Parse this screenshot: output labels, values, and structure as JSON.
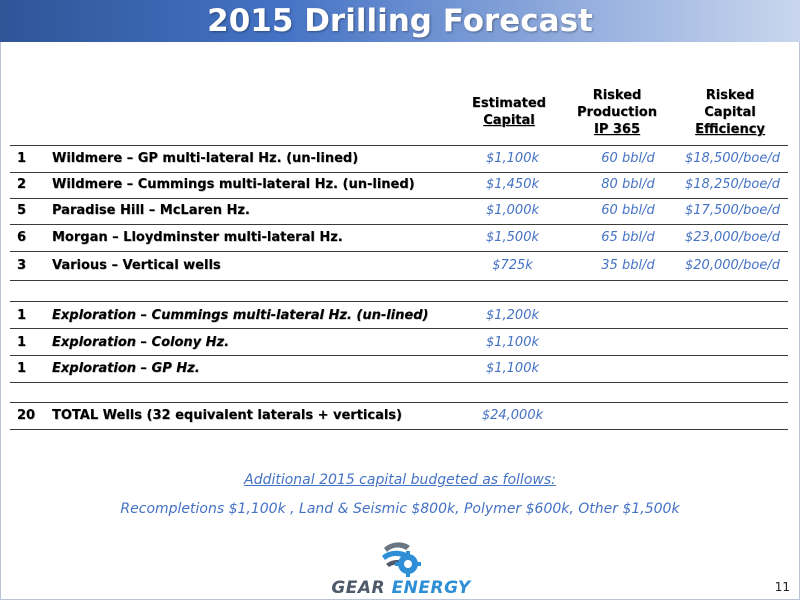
{
  "title": "2015 Drilling Forecast",
  "headers": {
    "capital": [
      "Estimated",
      "Capital"
    ],
    "production": [
      "Risked",
      "Production",
      "IP 365"
    ],
    "efficiency": [
      "Risked",
      "Capital",
      "Efficiency"
    ]
  },
  "rows": [
    {
      "num": "1",
      "desc": "Wildmere – GP multi-lateral Hz. (un-lined)",
      "capital": "$1,100k",
      "production": "60 bbl/d",
      "efficiency": "$18,500/boe/d"
    },
    {
      "num": "2",
      "desc": "Wildmere – Cummings multi-lateral Hz. (un-lined)",
      "capital": "$1,450k",
      "production": "80 bbl/d",
      "efficiency": "$18,250/boe/d"
    },
    {
      "num": "5",
      "desc": "Paradise Hill – McLaren Hz.",
      "capital": "$1,000k",
      "production": "60 bbl/d",
      "efficiency": "$17,500/boe/d"
    },
    {
      "num": "6",
      "desc": "Morgan – Lloydminster multi-lateral Hz.",
      "capital": "$1,500k",
      "production": "65 bbl/d",
      "efficiency": "$23,000/boe/d"
    },
    {
      "num": "3",
      "desc": "Various – Vertical wells",
      "capital": "$725k",
      "production": "35 bbl/d",
      "efficiency": "$20,000/boe/d"
    }
  ],
  "exploration": [
    {
      "num": "1",
      "desc": "Exploration – Cummings multi-lateral Hz. (un-lined)",
      "capital": "$1,200k"
    },
    {
      "num": "1",
      "desc": "Exploration – Colony Hz.",
      "capital": "$1,100k"
    },
    {
      "num": "1",
      "desc": "Exploration – GP Hz.",
      "capital": "$1,100k"
    }
  ],
  "total": {
    "num": "20",
    "desc": "TOTAL Wells (32 equivalent laterals + verticals)",
    "capital": "$24,000k"
  },
  "notes": {
    "line1": "Additional 2015 capital budgeted as follows:",
    "line2": "Recompletions $1,100k , Land & Seismic $800k, Polymer $600k, Other $1,500k"
  },
  "logo": {
    "word1": "GEAR",
    "word2": "ENERGY",
    "icon": "gear-logo-icon"
  },
  "page_number": "11",
  "colors": {
    "title_bar": "#4472c4",
    "accent_text": "#4472c4",
    "rule": "#3b3b3b",
    "logo_blue": "#2e8fd6",
    "logo_gray": "#4e5a6b"
  }
}
